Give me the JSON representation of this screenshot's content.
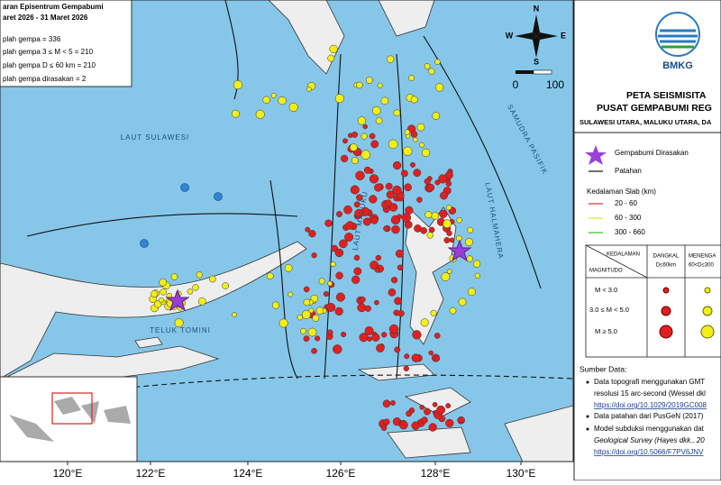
{
  "info_box": {
    "lines": [
      "aran Episentrum Gempabumi",
      "aret 2026 - 31 Maret 2026",
      "plah gempa = 336",
      "plah gempa 3 ≤ M < 5 = 210",
      "plah gempa D ≤ 60 km = 210",
      "plah gempa dirasakan = 2"
    ]
  },
  "compass": {
    "n": "N",
    "s": "S",
    "w": "W",
    "e": "E"
  },
  "scale": {
    "labels": [
      "0",
      "100"
    ]
  },
  "sea_labels": [
    "LAUT SULAWESI",
    "SAMUDRA PASIFIK",
    "LAUT HALMAHERA",
    "TELUK TOMINI",
    "LAUT MALUKU"
  ],
  "lon_labels": [
    "120°E",
    "122°E",
    "124°E",
    "126°E",
    "128°E",
    "130°E"
  ],
  "header": {
    "agency": "BMKG",
    "title_1": "PETA SEISMISITA",
    "title_2": "PUSAT GEMPABUMI REG",
    "subtitle": "SULAWESI UTARA, MALUKU UTARA, DA"
  },
  "legend": {
    "felt": "Gempabumi Dirasakan",
    "fault": "Patahan",
    "slab_title": "Kedalaman Slab (km)",
    "slab": [
      "20 - 60",
      "60 - 300",
      "300 - 660"
    ]
  },
  "table": {
    "depth_header": "KEDALAMAN",
    "magnitude_header": "MAGNITUDO",
    "shallow": [
      "DANGKAL",
      "D≤60km"
    ],
    "medium": [
      "MENENGA",
      "60<D≤300"
    ],
    "rows": [
      "M < 3.0",
      "3.0 ≤ M < 5.0",
      "M ≥ 5.0"
    ]
  },
  "sources": {
    "title": "Sumber Data:",
    "lines": [
      "Data topografi menggunakan GMT",
      "resolusi 15 arc-second (Wessel dkl",
      "https://doi.org/10.1029/2019GC008",
      "Data patahan dari PusGeN (2017)",
      "Model subduksi menggunakan dat",
      "Geological Survey (Hayes dkk., 20",
      "https://doi.org/10.5066/F7PV6JNV"
    ]
  }
}
